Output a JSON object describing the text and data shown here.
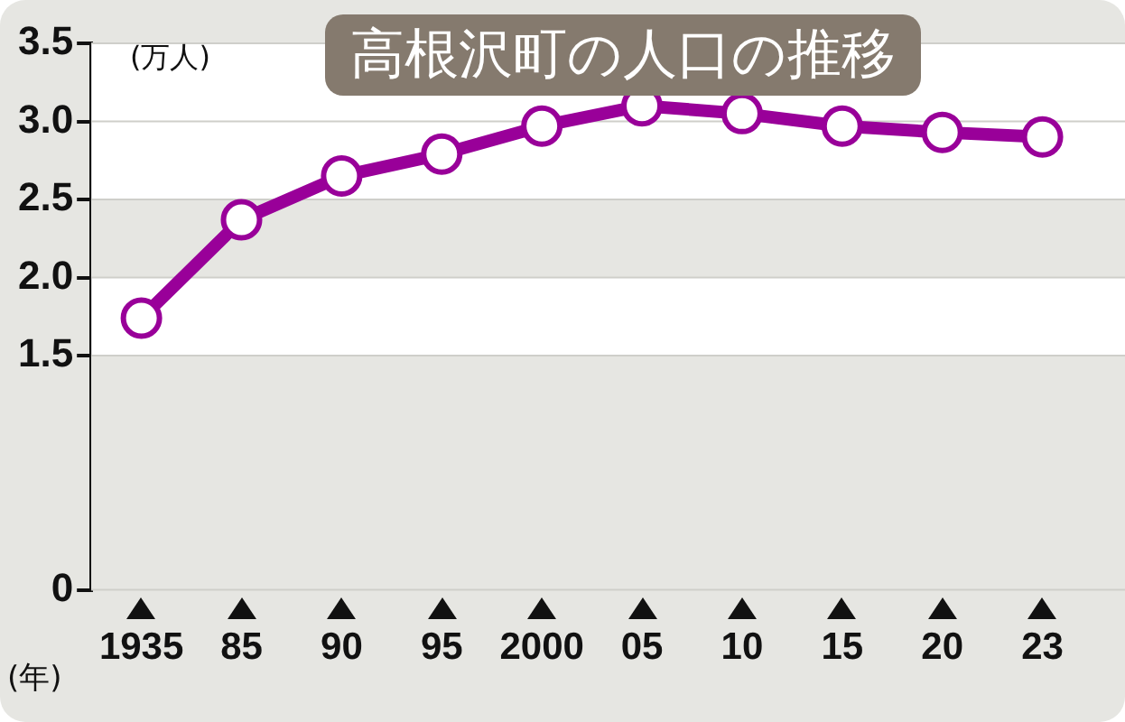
{
  "chart_data": {
    "type": "line",
    "title": "高根沢町の人口の推移",
    "ylabel": "(万人)",
    "xlabel": "(年)",
    "categories": [
      "1935",
      "85",
      "90",
      "95",
      "2000",
      "05",
      "10",
      "15",
      "20",
      "23"
    ],
    "series": [
      {
        "color": "#990099",
        "values": [
          1.74,
          2.37,
          2.65,
          2.79,
          2.97,
          3.1,
          3.05,
          2.97,
          2.93,
          2.9
        ]
      }
    ],
    "ylim": [
      0,
      3.5
    ],
    "yticks": [
      {
        "value": 0,
        "label": "0"
      },
      {
        "value": 1.5,
        "label": "1.5"
      },
      {
        "value": 2,
        "label": "2.0"
      },
      {
        "value": 2.5,
        "label": "2.5"
      },
      {
        "value": 3,
        "label": "3.0"
      },
      {
        "value": 3.5,
        "label": "3.5"
      }
    ],
    "grid": "y",
    "legend": false,
    "marker": "circle",
    "line_style": "solid"
  }
}
